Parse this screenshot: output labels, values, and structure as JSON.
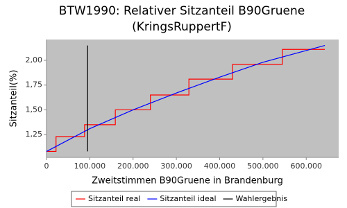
{
  "chart_data": {
    "type": "line",
    "title": "BTW1990: Relativer Sitzanteil B90Gruene",
    "subtitle": "(KringsRuppertF)",
    "x_label": "Zweitstimmen B90Gruene in Brandenburg",
    "y_label": "Sitzanteil(%)",
    "xlim": [
      0,
      675000
    ],
    "ylim": [
      1.02,
      2.21
    ],
    "xticks": [
      0,
      {
        "value": 100000,
        "label": "100.000"
      },
      {
        "value": 200000,
        "label": "200.000"
      },
      {
        "value": 300000,
        "label": "300.000"
      },
      {
        "value": 400000,
        "label": "400.000"
      },
      {
        "value": 500000,
        "label": "500.000"
      },
      {
        "value": 600000,
        "label": "600.000"
      }
    ],
    "yticks": [
      {
        "value": 1.25,
        "label": "1,25"
      },
      {
        "value": 1.5,
        "label": "1,50"
      },
      {
        "value": 1.75,
        "label": "1,75"
      },
      {
        "value": 2.0,
        "label": "2,00"
      }
    ],
    "grid": false,
    "legend": "bottom",
    "series": [
      {
        "name": "Sitzanteil real",
        "color": "#ff0000",
        "step": true,
        "x": [
          0,
          22000,
          88000,
          159000,
          240000,
          329000,
          430000,
          545000,
          643000
        ],
        "values": [
          1.08,
          1.23,
          1.35,
          1.5,
          1.65,
          1.81,
          1.96,
          2.11,
          2.11
        ]
      },
      {
        "name": "Sitzanteil ideal",
        "color": "#0000ff",
        "x": [
          0,
          100000,
          200000,
          300000,
          400000,
          500000,
          643000
        ],
        "values": [
          1.08,
          1.31,
          1.5,
          1.67,
          1.83,
          1.98,
          2.15
        ]
      },
      {
        "name": "Wahlergebnis",
        "color": "#000000",
        "x": [
          95000,
          95000
        ],
        "values": [
          1.08,
          2.15
        ]
      }
    ]
  }
}
